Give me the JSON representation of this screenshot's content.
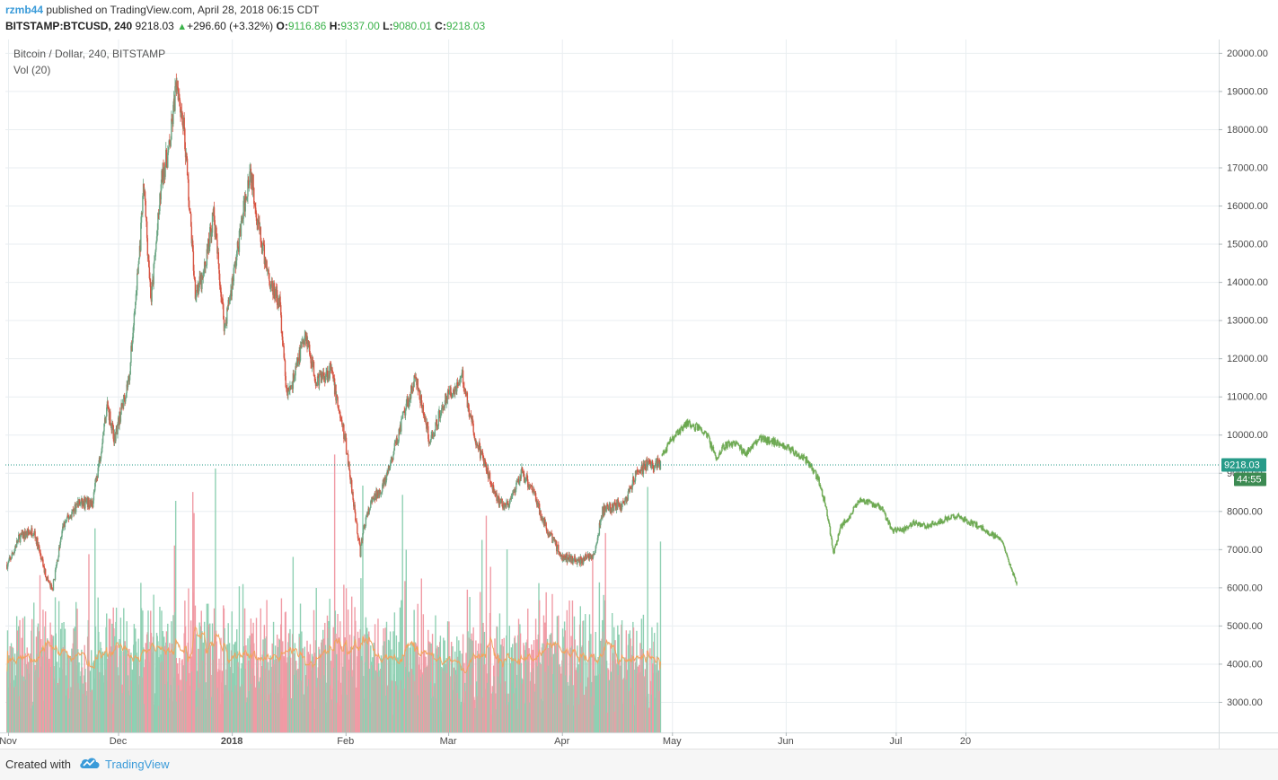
{
  "header": {
    "author": "rzmb44",
    "published_text": "published on TradingView.com, April 28, 2018 06:15 CDT",
    "symbol": "BITSTAMP:BTCUSD, 240",
    "last": "9218.03",
    "change": "+296.60 (+3.32%)",
    "open_label": "O:",
    "open": "9116.86",
    "high_label": "H:",
    "high": "9337.00",
    "low_label": "L:",
    "low": "9080.01",
    "close_label": "C:",
    "close": "9218.03"
  },
  "legend": {
    "title": "Bitcoin / Dollar, 240, BITSTAMP",
    "volume": "Vol (20)"
  },
  "price_badge": {
    "price": "9218.03",
    "countdown": "44:55"
  },
  "footer": {
    "created_with": "Created with",
    "brand": "TradingView"
  },
  "colors": {
    "up": "#6ba583",
    "down": "#d75442",
    "projection": "#6aa84f",
    "vol_up": "#8fd0b3",
    "vol_down": "#f09ba5",
    "vol_ma": "#f2a35e",
    "last_line": "#279b89",
    "grid": "#e9eef1"
  },
  "chart_data": {
    "type": "candlestick",
    "title": "Bitcoin / Dollar, 240, BITSTAMP",
    "ylim": [
      2200,
      20350
    ],
    "y_ticks": [
      3000,
      4000,
      5000,
      6000,
      7000,
      8000,
      9000,
      10000,
      11000,
      12000,
      13000,
      14000,
      15000,
      16000,
      17000,
      18000,
      19000,
      20000
    ],
    "x_ticks": [
      "Nov",
      "Dec",
      "2018",
      "Feb",
      "Mar",
      "Apr",
      "May",
      "Jun",
      "Jul",
      "20"
    ],
    "x_tick_dates": [
      "2017-11-01",
      "2017-12-01",
      "2018-01-01",
      "2018-02-01",
      "2018-03-01",
      "2018-04-01",
      "2018-05-01",
      "2018-06-01",
      "2018-07-01",
      "2018-07-20"
    ],
    "last_price": 9218.03,
    "price_series": {
      "name": "Bitcoin / Dollar",
      "dates": [
        "2017-11-01",
        "2017-11-04",
        "2017-11-08",
        "2017-11-11",
        "2017-11-13",
        "2017-11-16",
        "2017-11-20",
        "2017-11-24",
        "2017-11-26",
        "2017-11-28",
        "2017-11-30",
        "2017-12-04",
        "2017-12-07",
        "2017-12-08",
        "2017-12-10",
        "2017-12-13",
        "2017-12-15",
        "2017-12-17",
        "2017-12-19",
        "2017-12-22",
        "2017-12-24",
        "2017-12-27",
        "2017-12-30",
        "2018-01-02",
        "2018-01-06",
        "2018-01-09",
        "2018-01-12",
        "2018-01-14",
        "2018-01-16",
        "2018-01-18",
        "2018-01-21",
        "2018-01-24",
        "2018-01-28",
        "2018-02-01",
        "2018-02-03",
        "2018-02-05",
        "2018-02-06",
        "2018-02-08",
        "2018-02-12",
        "2018-02-16",
        "2018-02-20",
        "2018-02-24",
        "2018-02-28",
        "2018-03-05",
        "2018-03-08",
        "2018-03-11",
        "2018-03-15",
        "2018-03-18",
        "2018-03-21",
        "2018-03-24",
        "2018-03-27",
        "2018-04-01",
        "2018-04-06",
        "2018-04-10",
        "2018-04-12",
        "2018-04-15",
        "2018-04-18",
        "2018-04-21",
        "2018-04-24",
        "2018-04-28"
      ],
      "values": [
        6600,
        7300,
        7500,
        6400,
        5900,
        7600,
        8200,
        8200,
        9400,
        10800,
        9900,
        11500,
        15000,
        16500,
        13500,
        16800,
        17500,
        19300,
        18000,
        13800,
        14000,
        15800,
        12800,
        14500,
        17000,
        15000,
        13800,
        13500,
        11000,
        11500,
        12700,
        11400,
        11700,
        9800,
        8400,
        6900,
        7600,
        8200,
        8800,
        10200,
        11500,
        9800,
        10900,
        11500,
        10000,
        9200,
        8200,
        8200,
        9000,
        8600,
        7700,
        6800,
        6700,
        6900,
        8000,
        8100,
        8200,
        8900,
        9200,
        9218
      ]
    },
    "projection_series": {
      "dates": [
        "2018-04-28",
        "2018-05-01",
        "2018-05-05",
        "2018-05-10",
        "2018-05-13",
        "2018-05-15",
        "2018-05-18",
        "2018-05-21",
        "2018-05-25",
        "2018-05-29",
        "2018-06-01",
        "2018-06-04",
        "2018-06-07",
        "2018-06-10",
        "2018-06-12",
        "2018-06-14",
        "2018-06-16",
        "2018-06-18",
        "2018-06-21",
        "2018-06-24",
        "2018-06-27",
        "2018-06-30",
        "2018-07-03",
        "2018-07-06",
        "2018-07-09",
        "2018-07-12",
        "2018-07-15",
        "2018-07-18",
        "2018-07-21",
        "2018-07-24",
        "2018-07-27",
        "2018-07-30",
        "2018-08-01",
        "2018-08-03"
      ],
      "values": [
        9400,
        9900,
        10300,
        10100,
        9400,
        9700,
        9800,
        9500,
        9900,
        9800,
        9700,
        9500,
        9300,
        8800,
        8100,
        6900,
        7600,
        7800,
        8300,
        8200,
        8100,
        7500,
        7500,
        7700,
        7600,
        7700,
        7800,
        7900,
        7700,
        7600,
        7400,
        7200,
        6600,
        6100
      ]
    },
    "volume": {
      "name": "Vol (20)",
      "ylim": [
        0,
        25000
      ]
    }
  }
}
